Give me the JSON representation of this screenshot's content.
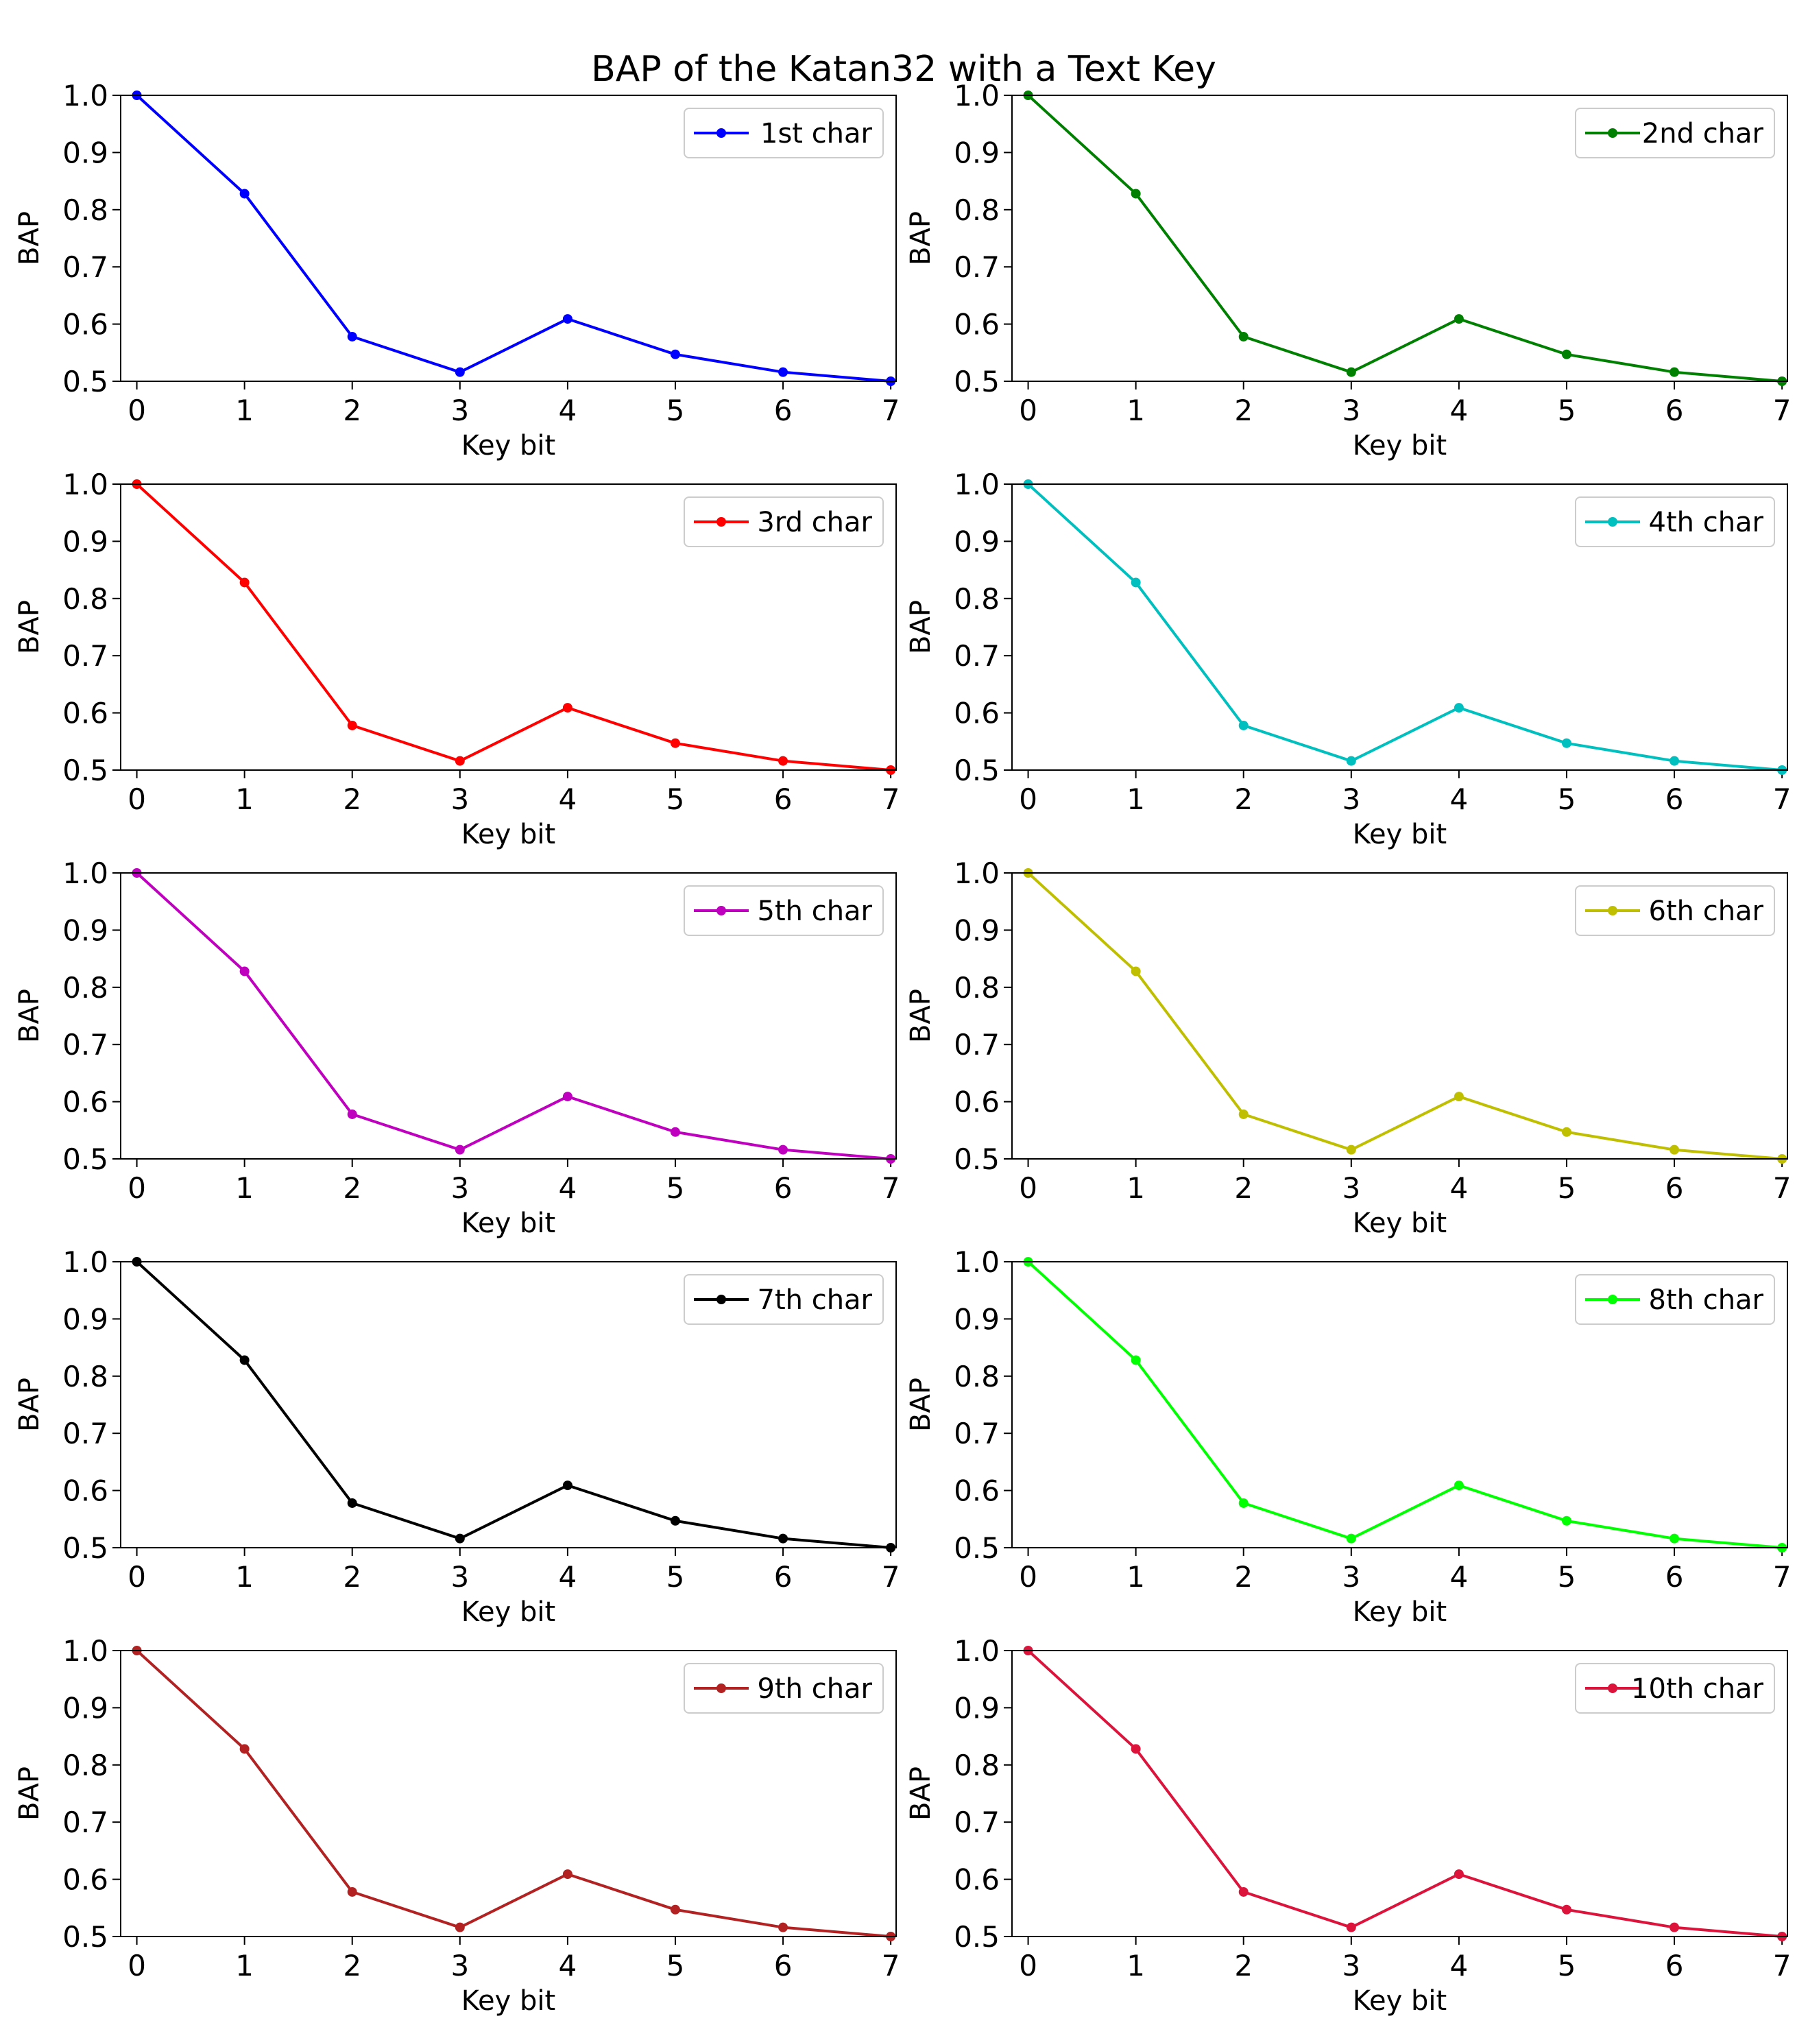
{
  "figure": {
    "title": "BAP of the Katan32 with a Text Key"
  },
  "chart_data": [
    {
      "type": "line",
      "xlabel": "Key bit",
      "ylabel": "BAP",
      "x": [
        0,
        1,
        2,
        3,
        4,
        5,
        6,
        7
      ],
      "xlim": [
        -0.15,
        7.05
      ],
      "ylim": [
        0.5,
        1.0
      ],
      "yticks": [
        "0.5",
        "0.6",
        "0.7",
        "0.8",
        "0.9",
        "1.0"
      ],
      "xticks": [
        "0",
        "1",
        "2",
        "3",
        "4",
        "5",
        "6",
        "7"
      ],
      "legend_position": "top-right",
      "series": [
        {
          "name": "1st char",
          "color": "#0000ff",
          "values": [
            1.0,
            0.828,
            0.578,
            0.516,
            0.609,
            0.547,
            0.516,
            0.5
          ]
        }
      ]
    },
    {
      "type": "line",
      "xlabel": "Key bit",
      "ylabel": "BAP",
      "x": [
        0,
        1,
        2,
        3,
        4,
        5,
        6,
        7
      ],
      "xlim": [
        -0.15,
        7.05
      ],
      "ylim": [
        0.5,
        1.0
      ],
      "yticks": [
        "0.5",
        "0.6",
        "0.7",
        "0.8",
        "0.9",
        "1.0"
      ],
      "xticks": [
        "0",
        "1",
        "2",
        "3",
        "4",
        "5",
        "6",
        "7"
      ],
      "legend_position": "top-right",
      "series": [
        {
          "name": "2nd char",
          "color": "#008000",
          "values": [
            1.0,
            0.828,
            0.578,
            0.516,
            0.609,
            0.547,
            0.516,
            0.5
          ]
        }
      ]
    },
    {
      "type": "line",
      "xlabel": "Key bit",
      "ylabel": "BAP",
      "x": [
        0,
        1,
        2,
        3,
        4,
        5,
        6,
        7
      ],
      "xlim": [
        -0.15,
        7.05
      ],
      "ylim": [
        0.5,
        1.0
      ],
      "yticks": [
        "0.5",
        "0.6",
        "0.7",
        "0.8",
        "0.9",
        "1.0"
      ],
      "xticks": [
        "0",
        "1",
        "2",
        "3",
        "4",
        "5",
        "6",
        "7"
      ],
      "legend_position": "top-right",
      "series": [
        {
          "name": "3rd char",
          "color": "#ff0000",
          "values": [
            1.0,
            0.828,
            0.578,
            0.516,
            0.609,
            0.547,
            0.516,
            0.5
          ]
        }
      ]
    },
    {
      "type": "line",
      "xlabel": "Key bit",
      "ylabel": "BAP",
      "x": [
        0,
        1,
        2,
        3,
        4,
        5,
        6,
        7
      ],
      "xlim": [
        -0.15,
        7.05
      ],
      "ylim": [
        0.5,
        1.0
      ],
      "yticks": [
        "0.5",
        "0.6",
        "0.7",
        "0.8",
        "0.9",
        "1.0"
      ],
      "xticks": [
        "0",
        "1",
        "2",
        "3",
        "4",
        "5",
        "6",
        "7"
      ],
      "legend_position": "top-right",
      "series": [
        {
          "name": "4th char",
          "color": "#00bfbf",
          "values": [
            1.0,
            0.828,
            0.578,
            0.516,
            0.609,
            0.547,
            0.516,
            0.5
          ]
        }
      ]
    },
    {
      "type": "line",
      "xlabel": "Key bit",
      "ylabel": "BAP",
      "x": [
        0,
        1,
        2,
        3,
        4,
        5,
        6,
        7
      ],
      "xlim": [
        -0.15,
        7.05
      ],
      "ylim": [
        0.5,
        1.0
      ],
      "yticks": [
        "0.5",
        "0.6",
        "0.7",
        "0.8",
        "0.9",
        "1.0"
      ],
      "xticks": [
        "0",
        "1",
        "2",
        "3",
        "4",
        "5",
        "6",
        "7"
      ],
      "legend_position": "top-right",
      "series": [
        {
          "name": "5th char",
          "color": "#bf00bf",
          "values": [
            1.0,
            0.828,
            0.578,
            0.516,
            0.609,
            0.547,
            0.516,
            0.5
          ]
        }
      ]
    },
    {
      "type": "line",
      "xlabel": "Key bit",
      "ylabel": "BAP",
      "x": [
        0,
        1,
        2,
        3,
        4,
        5,
        6,
        7
      ],
      "xlim": [
        -0.15,
        7.05
      ],
      "ylim": [
        0.5,
        1.0
      ],
      "yticks": [
        "0.5",
        "0.6",
        "0.7",
        "0.8",
        "0.9",
        "1.0"
      ],
      "xticks": [
        "0",
        "1",
        "2",
        "3",
        "4",
        "5",
        "6",
        "7"
      ],
      "legend_position": "top-right",
      "series": [
        {
          "name": "6th char",
          "color": "#bfbf00",
          "values": [
            1.0,
            0.828,
            0.578,
            0.516,
            0.609,
            0.547,
            0.516,
            0.5
          ]
        }
      ]
    },
    {
      "type": "line",
      "xlabel": "Key bit",
      "ylabel": "BAP",
      "x": [
        0,
        1,
        2,
        3,
        4,
        5,
        6,
        7
      ],
      "xlim": [
        -0.15,
        7.05
      ],
      "ylim": [
        0.5,
        1.0
      ],
      "yticks": [
        "0.5",
        "0.6",
        "0.7",
        "0.8",
        "0.9",
        "1.0"
      ],
      "xticks": [
        "0",
        "1",
        "2",
        "3",
        "4",
        "5",
        "6",
        "7"
      ],
      "legend_position": "top-right",
      "series": [
        {
          "name": "7th char",
          "color": "#000000",
          "values": [
            1.0,
            0.828,
            0.578,
            0.516,
            0.609,
            0.547,
            0.516,
            0.5
          ]
        }
      ]
    },
    {
      "type": "line",
      "xlabel": "Key bit",
      "ylabel": "BAP",
      "x": [
        0,
        1,
        2,
        3,
        4,
        5,
        6,
        7
      ],
      "xlim": [
        -0.15,
        7.05
      ],
      "ylim": [
        0.5,
        1.0
      ],
      "yticks": [
        "0.5",
        "0.6",
        "0.7",
        "0.8",
        "0.9",
        "1.0"
      ],
      "xticks": [
        "0",
        "1",
        "2",
        "3",
        "4",
        "5",
        "6",
        "7"
      ],
      "legend_position": "top-right",
      "series": [
        {
          "name": "8th char",
          "color": "#00ff00",
          "values": [
            1.0,
            0.828,
            0.578,
            0.516,
            0.609,
            0.547,
            0.516,
            0.5
          ]
        }
      ]
    },
    {
      "type": "line",
      "xlabel": "Key bit",
      "ylabel": "BAP",
      "x": [
        0,
        1,
        2,
        3,
        4,
        5,
        6,
        7
      ],
      "xlim": [
        -0.15,
        7.05
      ],
      "ylim": [
        0.5,
        1.0
      ],
      "yticks": [
        "0.5",
        "0.6",
        "0.7",
        "0.8",
        "0.9",
        "1.0"
      ],
      "xticks": [
        "0",
        "1",
        "2",
        "3",
        "4",
        "5",
        "6",
        "7"
      ],
      "legend_position": "top-right",
      "series": [
        {
          "name": "9th char",
          "color": "#b22222",
          "values": [
            1.0,
            0.828,
            0.578,
            0.516,
            0.609,
            0.547,
            0.516,
            0.5
          ]
        }
      ]
    },
    {
      "type": "line",
      "xlabel": "Key bit",
      "ylabel": "BAP",
      "x": [
        0,
        1,
        2,
        3,
        4,
        5,
        6,
        7
      ],
      "xlim": [
        -0.15,
        7.05
      ],
      "ylim": [
        0.5,
        1.0
      ],
      "yticks": [
        "0.5",
        "0.6",
        "0.7",
        "0.8",
        "0.9",
        "1.0"
      ],
      "xticks": [
        "0",
        "1",
        "2",
        "3",
        "4",
        "5",
        "6",
        "7"
      ],
      "legend_position": "top-right",
      "series": [
        {
          "name": "10th char",
          "color": "#dc143c",
          "values": [
            1.0,
            0.828,
            0.578,
            0.516,
            0.609,
            0.547,
            0.516,
            0.5
          ]
        }
      ]
    }
  ]
}
